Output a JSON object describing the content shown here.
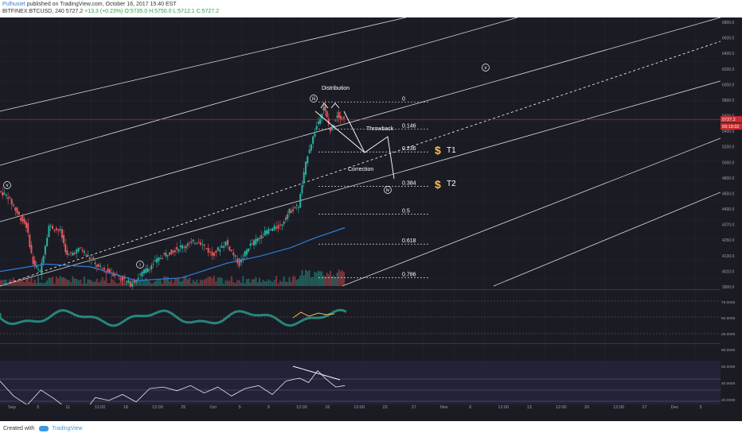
{
  "header": {
    "author": "Pulhusiet",
    "published": "published on TradingView.com, October 16, 2017 15:40 EST",
    "symbol_line_a": "BITFINEX:BTCUSD, 240  5727.2",
    "change": "+13.3 (+0.23%)",
    "ohlc": "O:5735.0 H:5750.0 L:5712.1 C:5727.2"
  },
  "footer": {
    "created_with": "Created with",
    "brand": "TradingView"
  },
  "colors": {
    "bg": "#1b1b24",
    "up": "#2bb3a0",
    "down": "#e35a5a",
    "ma": "#2f7ed8",
    "channel": "#ffffff",
    "price_tag": "#cc2b2b",
    "dollar": "#f2c14e"
  },
  "chart_data": {
    "type": "candlestick",
    "symbol": "BITFINEX:BTCUSD",
    "timeframe": "240",
    "last_price": "5727.2",
    "countdown": "03:19:32",
    "price_axis": [
      "6800.0",
      "6600.0",
      "6400.0",
      "6200.0",
      "6000.0",
      "5800.0",
      "5600.0",
      "5400.0",
      "5200.0",
      "5000.0",
      "4800.0",
      "4650.0",
      "4490.0",
      "4370.0",
      "4250.0",
      "4130.0",
      "4010.0",
      "3900.0"
    ],
    "ylim": [
      3900,
      6800
    ],
    "time_axis": [
      "Sep",
      "5",
      "11",
      "12:00",
      "18",
      "12:00",
      "25",
      "Oct",
      "5",
      "9",
      "12:00",
      "16",
      "12:00",
      "23",
      "27",
      "Nov",
      "6",
      "12:00",
      "13",
      "12:00",
      "20",
      "12:00",
      "27",
      "Dec",
      "5"
    ],
    "price_path": [
      {
        "x": 0,
        "y": 4940
      },
      {
        "x": 4,
        "y": 4880
      },
      {
        "x": 8,
        "y": 4700
      },
      {
        "x": 12,
        "y": 4560
      },
      {
        "x": 15,
        "y": 4150
      },
      {
        "x": 18,
        "y": 4050
      },
      {
        "x": 22,
        "y": 4560
      },
      {
        "x": 27,
        "y": 4500
      },
      {
        "x": 30,
        "y": 4230
      },
      {
        "x": 36,
        "y": 4310
      },
      {
        "x": 44,
        "y": 4100
      },
      {
        "x": 52,
        "y": 4020
      },
      {
        "x": 58,
        "y": 3920
      },
      {
        "x": 64,
        "y": 4060
      },
      {
        "x": 72,
        "y": 4230
      },
      {
        "x": 80,
        "y": 4330
      },
      {
        "x": 88,
        "y": 4400
      },
      {
        "x": 94,
        "y": 4240
      },
      {
        "x": 100,
        "y": 4380
      },
      {
        "x": 106,
        "y": 4140
      },
      {
        "x": 110,
        "y": 4330
      },
      {
        "x": 118,
        "y": 4500
      },
      {
        "x": 124,
        "y": 4560
      },
      {
        "x": 128,
        "y": 4720
      },
      {
        "x": 132,
        "y": 4780
      },
      {
        "x": 136,
        "y": 5350
      },
      {
        "x": 140,
        "y": 5650
      },
      {
        "x": 143,
        "y": 5870
      },
      {
        "x": 146,
        "y": 5600
      },
      {
        "x": 149,
        "y": 5780
      },
      {
        "x": 152,
        "y": 5727
      }
    ],
    "moving_average": [
      {
        "x": 0,
        "y": 4060
      },
      {
        "x": 20,
        "y": 4140
      },
      {
        "x": 40,
        "y": 4110
      },
      {
        "x": 60,
        "y": 3960
      },
      {
        "x": 80,
        "y": 3990
      },
      {
        "x": 100,
        "y": 4150
      },
      {
        "x": 115,
        "y": 4230
      },
      {
        "x": 128,
        "y": 4320
      },
      {
        "x": 138,
        "y": 4420
      },
      {
        "x": 152,
        "y": 4540
      }
    ],
    "fibonacci": [
      {
        "level": "0",
        "price": 5915
      },
      {
        "level": "0.146",
        "price": 5620
      },
      {
        "level": "0.236",
        "price": 5370
      },
      {
        "level": "0.384",
        "price": 4995
      },
      {
        "level": "0.5",
        "price": 4690
      },
      {
        "level": "0.618",
        "price": 4360
      },
      {
        "level": "0.786",
        "price": 3990
      }
    ],
    "annotations": {
      "distribution": "Distribution",
      "throwback": "Throwback",
      "correction": "Correction",
      "t1": "T1",
      "t2": "T2",
      "dollar": "$",
      "wave_i": "i",
      "wave_iii": "iii",
      "wave_iv": "iv",
      "wave_v_top": "v",
      "wave_v_left": "v"
    },
    "stoch_axis": [
      "75.0000",
      "50.0000",
      "25.0000"
    ],
    "rsi_axis": [
      "80.0000",
      "60.0000",
      "40.0000",
      "20.0000"
    ],
    "rsi_path": [
      {
        "x": 0,
        "y": 68
      },
      {
        "x": 6,
        "y": 48
      },
      {
        "x": 12,
        "y": 36
      },
      {
        "x": 18,
        "y": 56
      },
      {
        "x": 24,
        "y": 44
      },
      {
        "x": 30,
        "y": 30
      },
      {
        "x": 36,
        "y": 22
      },
      {
        "x": 42,
        "y": 46
      },
      {
        "x": 48,
        "y": 42
      },
      {
        "x": 54,
        "y": 50
      },
      {
        "x": 60,
        "y": 40
      },
      {
        "x": 66,
        "y": 58
      },
      {
        "x": 72,
        "y": 60
      },
      {
        "x": 78,
        "y": 55
      },
      {
        "x": 84,
        "y": 62
      },
      {
        "x": 90,
        "y": 52
      },
      {
        "x": 96,
        "y": 60
      },
      {
        "x": 102,
        "y": 48
      },
      {
        "x": 108,
        "y": 58
      },
      {
        "x": 114,
        "y": 62
      },
      {
        "x": 120,
        "y": 50
      },
      {
        "x": 126,
        "y": 68
      },
      {
        "x": 132,
        "y": 72
      },
      {
        "x": 136,
        "y": 66
      },
      {
        "x": 140,
        "y": 82
      },
      {
        "x": 144,
        "y": 70
      },
      {
        "x": 148,
        "y": 60
      },
      {
        "x": 152,
        "y": 62
      }
    ]
  }
}
